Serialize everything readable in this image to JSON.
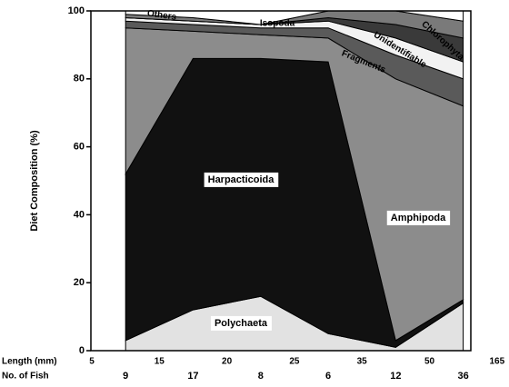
{
  "chart_data": {
    "type": "stacked_area",
    "ylabel": "Diet Composition (%)",
    "xlabel": "Length (mm)",
    "categories_label": "No. of Fish",
    "length_classes": [
      5,
      15,
      20,
      25,
      35,
      50,
      165
    ],
    "categories": [
      "9",
      "17",
      "8",
      "6",
      "12",
      "36"
    ],
    "ylim": [
      0,
      100
    ],
    "yticks": [
      0,
      20,
      40,
      60,
      80,
      100
    ],
    "series": [
      {
        "name": "Polychaeta",
        "color": "#e2e2e2",
        "values": [
          3,
          12,
          16,
          5,
          1,
          14
        ]
      },
      {
        "name": "Harpacticoida",
        "color": "#111111",
        "values": [
          49,
          74,
          70,
          80,
          2,
          1
        ]
      },
      {
        "name": "Amphipoda",
        "color": "#8c8c8c",
        "values": [
          43,
          8,
          7,
          7,
          77,
          57
        ]
      },
      {
        "name": "Fragments",
        "color": "#5a5a5a",
        "values": [
          2,
          2,
          2,
          3,
          7,
          8
        ]
      },
      {
        "name": "Unidentifiable",
        "color": "#f2f2f2",
        "values": [
          1,
          1,
          1,
          2,
          5,
          5
        ]
      },
      {
        "name": "Chlorophyta",
        "color": "#3a3a3a",
        "values": [
          0,
          0,
          0,
          1,
          4,
          7
        ]
      },
      {
        "name": "Isopoda",
        "color": "#7a7a7a",
        "values": [
          1,
          1,
          0,
          2,
          4,
          5
        ]
      },
      {
        "name": "Others",
        "color": "#ffffff",
        "values": [
          1,
          2,
          4,
          0,
          0,
          3
        ]
      }
    ]
  }
}
